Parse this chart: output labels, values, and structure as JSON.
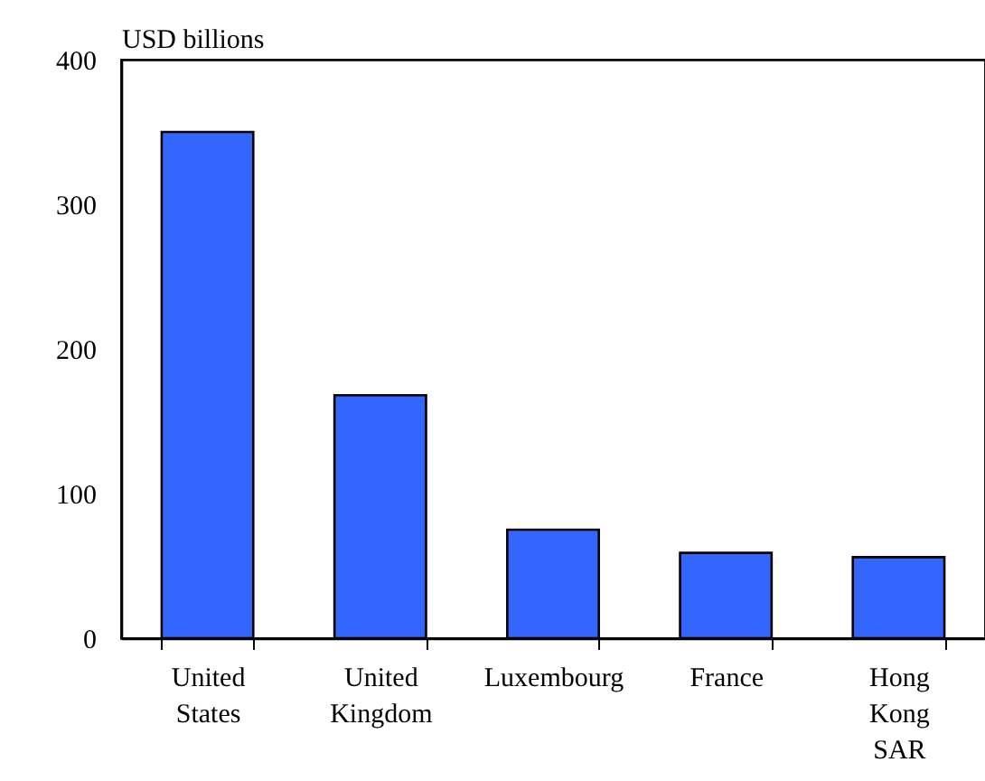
{
  "chart_data": {
    "type": "bar",
    "ylabel": "USD billions",
    "categories": [
      "United States",
      "United Kingdom",
      "Luxembourg",
      "France",
      "Hong Kong SAR"
    ],
    "values": [
      350,
      168,
      75,
      59,
      56
    ],
    "color": "#3366ff",
    "ylim": [
      0,
      400
    ],
    "yticks": [
      0,
      100,
      200,
      300,
      400
    ],
    "grid": false
  }
}
